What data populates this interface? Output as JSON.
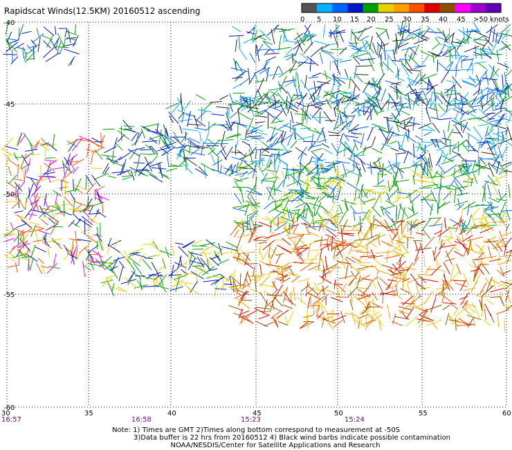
{
  "title": "Rapidscat Winds(12.5KM) 20160512 ascending",
  "colorbar": {
    "labels": [
      "0",
      "5",
      "10",
      "15",
      "20",
      "25",
      "30",
      "35",
      "40",
      "45",
      ">50 knots"
    ],
    "colors": [
      "#555555",
      "#00b4ff",
      "#0064ff",
      "#0014c8",
      "#00a000",
      "#e6d200",
      "#ffa000",
      "#ff5000",
      "#dc0000",
      "#8c5000",
      "#ff00ff",
      "#a000d2",
      "#6400b4"
    ]
  },
  "axes": {
    "x_labels": [
      "30",
      "35",
      "40",
      "45",
      "50",
      "55",
      "60"
    ],
    "y_labels": [
      "-40",
      "-45",
      "-50",
      "-55",
      "-60"
    ]
  },
  "times": [
    "16:57",
    "16:58",
    "15:23",
    "15:24"
  ],
  "notes": [
    "Note: 1) Times are GMT 2)Times along bottom correspond to measurement at -50S",
    "3)Data buffer is 22 hrs from 20160512 4) Black wind barbs indicate possible contamination",
    "NOAA/NESDIS/Center for Satellite Applications and Research"
  ]
}
